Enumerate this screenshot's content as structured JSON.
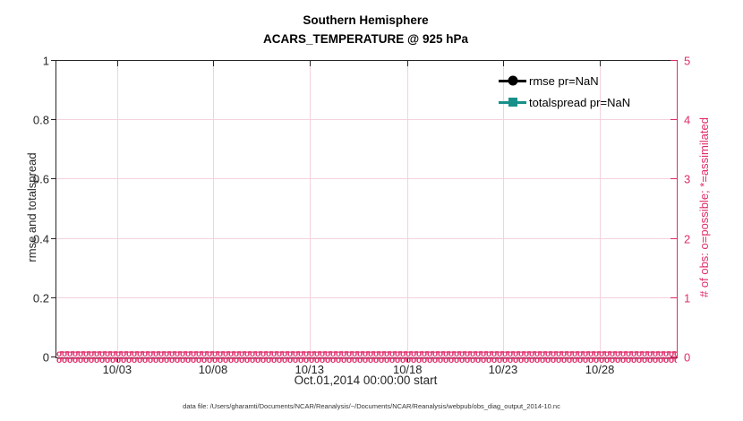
{
  "title": {
    "line1": "Southern Hemisphere",
    "line2": "ACARS_TEMPERATURE @ 925 hPa"
  },
  "colors": {
    "axis_dark": "#262626",
    "obs_pink": "#df2d6a",
    "rmse_black": "#000000",
    "totalspread_teal": "#17908a"
  },
  "legend": {
    "items": [
      {
        "label": "rmse pr=NaN",
        "marker": "circle",
        "color": "#000000"
      },
      {
        "label": "totalspread pr=NaN",
        "marker": "square",
        "color": "#17908a"
      }
    ]
  },
  "left_axis": {
    "label": "rmse and totalspread",
    "tick_labels": [
      "0",
      "0.2",
      "0.4",
      "0.6",
      "0.8",
      "1"
    ],
    "range": [
      0,
      1
    ]
  },
  "right_axis": {
    "label": "# of obs: o=possible; *=assimilated",
    "tick_labels": [
      "0",
      "1",
      "2",
      "3",
      "4",
      "5"
    ],
    "range": [
      0,
      5
    ]
  },
  "x_axis": {
    "label": "Oct.01,2014 00:00:00 start",
    "ticks": [
      {
        "label": "10/03",
        "pos": 0.098
      },
      {
        "label": "10/08",
        "pos": 0.2525
      },
      {
        "label": "10/13",
        "pos": 0.408
      },
      {
        "label": "10/18",
        "pos": 0.566
      },
      {
        "label": "10/23",
        "pos": 0.72
      },
      {
        "label": "10/28",
        "pos": 0.876
      }
    ]
  },
  "footer": {
    "data_file": "data file: /Users/gharamti/Documents/NCAR/Reanalysis/~/Documents/NCAR/Reanalysis/webpub/obs_diag_output_2014-10.nc"
  },
  "chart_data": {
    "type": "line",
    "title": "Southern Hemisphere",
    "subtitle": "ACARS_TEMPERATURE @ 925 hPa",
    "xlabel": "Oct.01,2014 00:00:00 start",
    "x_tick_labels": [
      "10/03",
      "10/08",
      "10/13",
      "10/18",
      "10/23",
      "10/28"
    ],
    "y_left": {
      "label": "rmse and totalspread",
      "range": [
        0,
        1
      ]
    },
    "y_right": {
      "label": "# of obs: o=possible; *=assimilated",
      "range": [
        0,
        5
      ]
    },
    "grid": true,
    "legend_position": "top-right-inside",
    "series": [
      {
        "name": "rmse pr=NaN",
        "axis": "left",
        "marker": "filled-circle",
        "color": "#000000",
        "values": "NaN (no curve plotted)"
      },
      {
        "name": "totalspread pr=NaN",
        "axis": "left",
        "marker": "filled-square",
        "color": "#17908a",
        "values": "NaN (no curve plotted)"
      },
      {
        "name": "# of obs possible",
        "axis": "right",
        "marker": "o",
        "color": "#df2d6a",
        "values": "0 at every time bin (dense marker row along y=0)"
      },
      {
        "name": "# of obs assimilated",
        "axis": "right",
        "marker": "*",
        "color": "#df2d6a",
        "values": "0 at every time bin (dense marker row along y=0)"
      }
    ],
    "obs_strip_glyphs": [
      "o",
      "*"
    ]
  }
}
